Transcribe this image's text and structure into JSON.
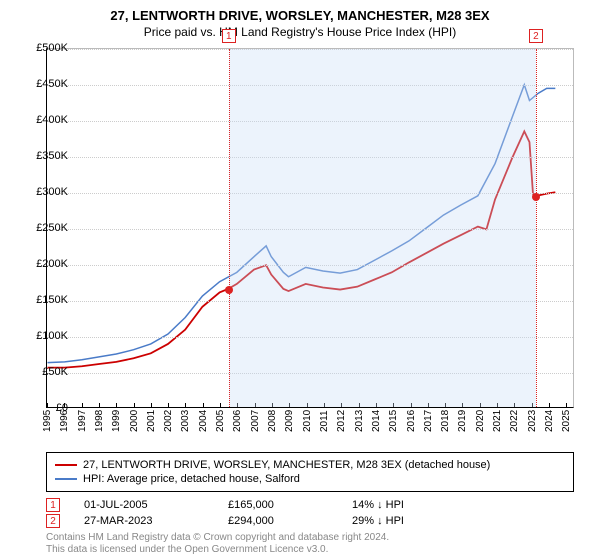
{
  "titles": {
    "line1": "27, LENTWORTH DRIVE, WORSLEY, MANCHESTER, M28 3EX",
    "line2": "Price paid vs. HM Land Registry's House Price Index (HPI)"
  },
  "chart": {
    "type": "line",
    "x_domain": [
      1995,
      2025.5
    ],
    "y_domain": [
      0,
      500000
    ],
    "x_ticks": [
      1995,
      1996,
      1997,
      1998,
      1999,
      2000,
      2001,
      2002,
      2003,
      2004,
      2005,
      2006,
      2007,
      2008,
      2009,
      2010,
      2011,
      2012,
      2013,
      2014,
      2015,
      2016,
      2017,
      2018,
      2019,
      2020,
      2021,
      2022,
      2023,
      2024,
      2025
    ],
    "y_ticks": [
      0,
      50000,
      100000,
      150000,
      200000,
      250000,
      300000,
      350000,
      400000,
      450000,
      500000
    ],
    "y_tick_labels": [
      "£0",
      "£50K",
      "£100K",
      "£150K",
      "£200K",
      "£250K",
      "£300K",
      "£350K",
      "£400K",
      "£450K",
      "£500K"
    ],
    "y_prefix": "£",
    "grid_color": "#cccccc",
    "band": {
      "start": 2005.5,
      "end": 2023.24,
      "color": "rgba(200,220,245,0.35)"
    },
    "markers": [
      {
        "x": 2005.5,
        "y": 165000,
        "label": "1"
      },
      {
        "x": 2023.24,
        "y": 294000,
        "label": "2"
      }
    ],
    "series": [
      {
        "name": "27, LENTWORTH DRIVE, WORSLEY, MANCHESTER, M28 3EX (detached house)",
        "color": "#cc0000",
        "width": 1.8,
        "points": [
          [
            1995,
            55000
          ],
          [
            1996,
            55000
          ],
          [
            1997,
            57000
          ],
          [
            1998,
            60000
          ],
          [
            1999,
            63000
          ],
          [
            2000,
            68000
          ],
          [
            2001,
            75000
          ],
          [
            2002,
            88000
          ],
          [
            2003,
            108000
          ],
          [
            2004,
            140000
          ],
          [
            2005,
            160000
          ],
          [
            2005.5,
            165000
          ],
          [
            2006,
            172000
          ],
          [
            2007,
            192000
          ],
          [
            2007.7,
            198000
          ],
          [
            2008,
            185000
          ],
          [
            2008.7,
            165000
          ],
          [
            2009,
            162000
          ],
          [
            2010,
            172000
          ],
          [
            2011,
            167000
          ],
          [
            2012,
            164000
          ],
          [
            2013,
            168000
          ],
          [
            2014,
            178000
          ],
          [
            2015,
            188000
          ],
          [
            2016,
            202000
          ],
          [
            2017,
            215000
          ],
          [
            2018,
            228000
          ],
          [
            2019,
            240000
          ],
          [
            2020,
            252000
          ],
          [
            2020.5,
            248000
          ],
          [
            2021,
            290000
          ],
          [
            2022,
            348000
          ],
          [
            2022.7,
            385000
          ],
          [
            2023,
            370000
          ],
          [
            2023.2,
            298000
          ],
          [
            2023.24,
            294000
          ],
          [
            2024,
            298000
          ],
          [
            2024.5,
            300000
          ]
        ]
      },
      {
        "name": "HPI: Average price, detached house, Salford",
        "color": "#4a7bc8",
        "width": 1.5,
        "points": [
          [
            1995,
            62000
          ],
          [
            1996,
            63000
          ],
          [
            1997,
            66000
          ],
          [
            1998,
            70000
          ],
          [
            1999,
            74000
          ],
          [
            2000,
            80000
          ],
          [
            2001,
            88000
          ],
          [
            2002,
            102000
          ],
          [
            2003,
            125000
          ],
          [
            2004,
            155000
          ],
          [
            2005,
            175000
          ],
          [
            2006,
            188000
          ],
          [
            2007,
            210000
          ],
          [
            2007.7,
            225000
          ],
          [
            2008,
            210000
          ],
          [
            2008.7,
            188000
          ],
          [
            2009,
            182000
          ],
          [
            2010,
            195000
          ],
          [
            2011,
            190000
          ],
          [
            2012,
            187000
          ],
          [
            2013,
            192000
          ],
          [
            2014,
            205000
          ],
          [
            2015,
            218000
          ],
          [
            2016,
            232000
          ],
          [
            2017,
            250000
          ],
          [
            2018,
            268000
          ],
          [
            2019,
            282000
          ],
          [
            2020,
            295000
          ],
          [
            2021,
            340000
          ],
          [
            2022,
            405000
          ],
          [
            2022.7,
            450000
          ],
          [
            2023,
            428000
          ],
          [
            2023.5,
            438000
          ],
          [
            2024,
            445000
          ],
          [
            2024.5,
            445000
          ]
        ]
      }
    ]
  },
  "legend": {
    "items": [
      {
        "color": "#cc0000",
        "label": "27, LENTWORTH DRIVE, WORSLEY, MANCHESTER, M28 3EX (detached house)"
      },
      {
        "color": "#4a7bc8",
        "label": "HPI: Average price, detached house, Salford"
      }
    ]
  },
  "annotations": [
    {
      "num": "1",
      "date": "01-JUL-2005",
      "price": "£165,000",
      "delta": "14% ↓ HPI"
    },
    {
      "num": "2",
      "date": "27-MAR-2023",
      "price": "£294,000",
      "delta": "29% ↓ HPI"
    }
  ],
  "footer": {
    "line1": "Contains HM Land Registry data © Crown copyright and database right 2024.",
    "line2": "This data is licensed under the Open Government Licence v3.0."
  }
}
